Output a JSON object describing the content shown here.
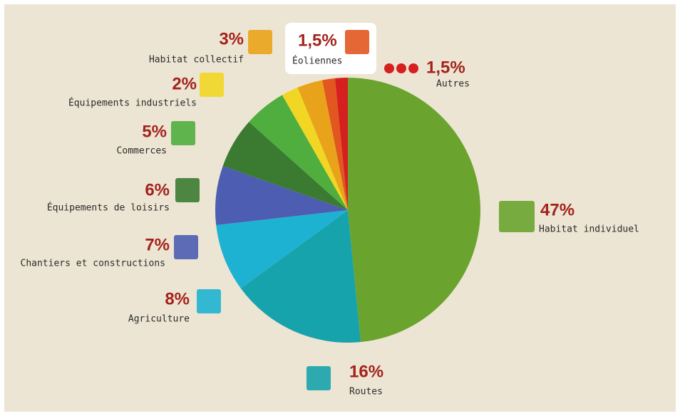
{
  "chart_data": {
    "type": "pie",
    "categories": [
      "Habitat individuel",
      "Routes",
      "Agriculture",
      "Chantiers et constructions",
      "Équipements de loisirs",
      "Commerces",
      "Équipements industriels",
      "Habitat collectif",
      "Éoliennes",
      "Autres"
    ],
    "values": [
      47,
      16,
      8,
      7,
      6,
      5,
      2,
      3,
      1.5,
      1.5
    ],
    "value_labels": [
      "47%",
      "16%",
      "8%",
      "7%",
      "6%",
      "5%",
      "2%",
      "3%",
      "1,5%",
      "1,5%"
    ],
    "colors": [
      "#6aa42f",
      "#17a3ac",
      "#1eb2d2",
      "#4d5db2",
      "#3a7b31",
      "#4fae3e",
      "#f1d624",
      "#e9a31a",
      "#e2561f",
      "#d61f1f"
    ]
  }
}
